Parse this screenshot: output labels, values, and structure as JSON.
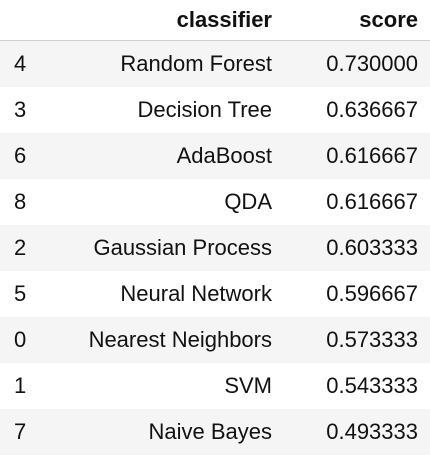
{
  "table": {
    "headers": {
      "index": "",
      "classifier": "classifier",
      "score": "score"
    },
    "rows": [
      {
        "index": "4",
        "classifier": "Random Forest",
        "score": "0.730000"
      },
      {
        "index": "3",
        "classifier": "Decision Tree",
        "score": "0.636667"
      },
      {
        "index": "6",
        "classifier": "AdaBoost",
        "score": "0.616667"
      },
      {
        "index": "8",
        "classifier": "QDA",
        "score": "0.616667"
      },
      {
        "index": "2",
        "classifier": "Gaussian Process",
        "score": "0.603333"
      },
      {
        "index": "5",
        "classifier": "Neural Network",
        "score": "0.596667"
      },
      {
        "index": "0",
        "classifier": "Nearest Neighbors",
        "score": "0.573333"
      },
      {
        "index": "1",
        "classifier": "SVM",
        "score": "0.543333"
      },
      {
        "index": "7",
        "classifier": "Naive Bayes",
        "score": "0.493333"
      }
    ]
  },
  "colors": {
    "stripe": "#f5f5f5",
    "text": "#111111",
    "header_rule": "#cfcfcf"
  }
}
